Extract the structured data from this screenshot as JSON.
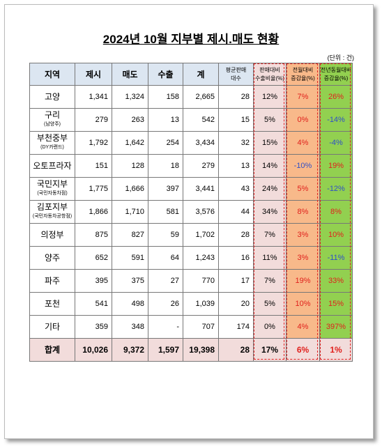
{
  "header": {
    "title": "2024년 10월 지부별 제시.매도 현황",
    "unit": "(단위 : 건)"
  },
  "table": {
    "columns": [
      [
        "지역"
      ],
      [
        "제시"
      ],
      [
        "매도"
      ],
      [
        "수출"
      ],
      [
        "계"
      ],
      [
        "평균판매",
        "대수"
      ],
      [
        "판매대비",
        "수출비율(%)"
      ],
      [
        "전월대비",
        "증감율(%)"
      ],
      [
        "전년동월대비",
        "증감율(%)"
      ]
    ],
    "rows": [
      {
        "region": "고양",
        "cells": [
          "1,341",
          "1,324",
          "158",
          "2,665",
          "28",
          "12%",
          "7%",
          "26%"
        ]
      },
      {
        "region": "구리",
        "sub": "(남양주)",
        "cells": [
          "279",
          "263",
          "13",
          "542",
          "15",
          "5%",
          "0%",
          "-14%"
        ]
      },
      {
        "region": "부천중부",
        "sub": "(DY카랜드)",
        "cells": [
          "1,792",
          "1,642",
          "254",
          "3,434",
          "32",
          "15%",
          "4%",
          "-4%"
        ]
      },
      {
        "region": "오토프라자",
        "cells": [
          "151",
          "128",
          "18",
          "279",
          "13",
          "14%",
          "-10%",
          "19%"
        ]
      },
      {
        "region": "국민지부",
        "sub": "(국민자동차점)",
        "cells": [
          "1,775",
          "1,666",
          "397",
          "3,441",
          "43",
          "24%",
          "5%",
          "-12%"
        ]
      },
      {
        "region": "김포지부",
        "sub": "(국민자동차공항점)",
        "cells": [
          "1,866",
          "1,710",
          "581",
          "3,576",
          "44",
          "34%",
          "8%",
          "8%"
        ]
      },
      {
        "region": "의정부",
        "cells": [
          "875",
          "827",
          "59",
          "1,702",
          "28",
          "7%",
          "3%",
          "10%"
        ]
      },
      {
        "region": "양주",
        "cells": [
          "652",
          "591",
          "64",
          "1,243",
          "16",
          "11%",
          "3%",
          "-11%"
        ]
      },
      {
        "region": "파주",
        "cells": [
          "395",
          "375",
          "27",
          "770",
          "17",
          "7%",
          "19%",
          "33%"
        ]
      },
      {
        "region": "포천",
        "cells": [
          "541",
          "498",
          "26",
          "1,039",
          "20",
          "5%",
          "10%",
          "15%"
        ]
      },
      {
        "region": "기타",
        "cells": [
          "359",
          "348",
          "-",
          "707",
          "174",
          "0%",
          "4%",
          "397%"
        ]
      }
    ],
    "total": {
      "region": "합계",
      "cells": [
        "10,026",
        "9,372",
        "1,597",
        "19,398",
        "28",
        "17%",
        "6%",
        "1%"
      ]
    }
  }
}
